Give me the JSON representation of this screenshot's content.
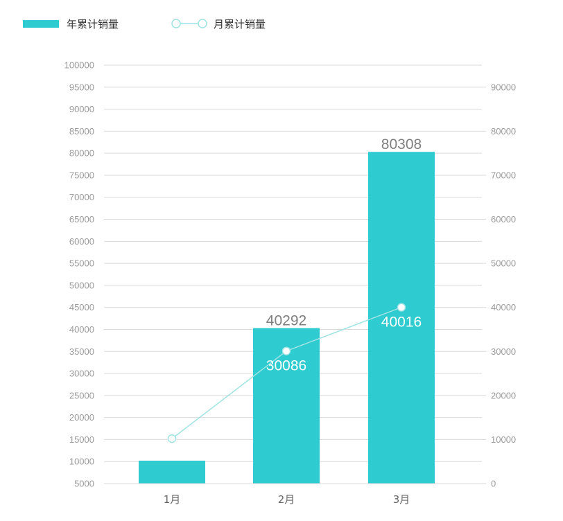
{
  "legend": {
    "bar_series_label": "年累计销量",
    "line_series_label": "月累计销量"
  },
  "colors": {
    "bar": "#2ecbd1",
    "line": "#9fe3e3",
    "grid": "#d9d9d9",
    "axis_text": "#9a9a9a",
    "bar_label": "#7f7f7f",
    "inner_label": "#ffffff"
  },
  "chart_data": {
    "type": "bar",
    "categories": [
      "1月",
      "2月",
      "3月"
    ],
    "series": [
      {
        "name": "年累计销量",
        "type": "bar",
        "axis": "left",
        "values": [
          10206,
          40292,
          80308
        ]
      },
      {
        "name": "月累计销量",
        "type": "line",
        "axis": "right",
        "values": [
          10206,
          30086,
          40016
        ]
      }
    ],
    "y_left": {
      "ylim": [
        5000,
        100000
      ],
      "ticks": [
        5000,
        10000,
        15000,
        20000,
        25000,
        30000,
        35000,
        40000,
        45000,
        50000,
        55000,
        60000,
        65000,
        70000,
        75000,
        80000,
        85000,
        90000,
        95000,
        100000
      ]
    },
    "y_right": {
      "ylim": [
        0,
        95000
      ],
      "ticks": [
        0,
        10000,
        20000,
        30000,
        40000,
        50000,
        60000,
        70000,
        80000,
        90000
      ]
    },
    "grid": true,
    "legend_position": "top-left",
    "title": "",
    "xlabel": "",
    "ylabel": ""
  }
}
